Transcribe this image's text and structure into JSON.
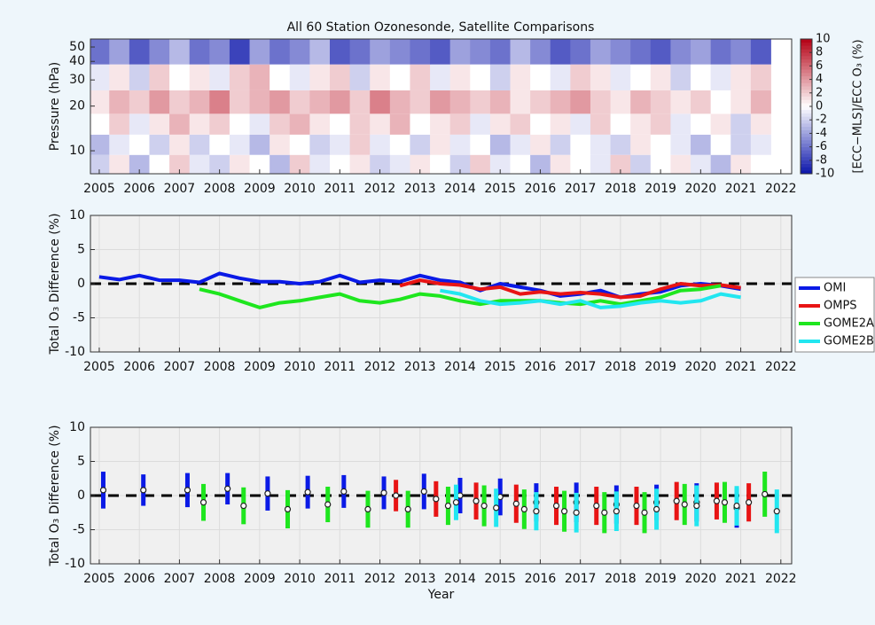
{
  "chart_data": [
    {
      "type": "heatmap",
      "title": "All 60 Station Ozonesonde, Satellite Comparisons",
      "ylabel": "Pressure (hPa)",
      "colorbar_label": "[ECC−MLS]/ECC O₃ (%)",
      "xlim": [
        2004.78,
        2022.27
      ],
      "xticks": [
        2005,
        2006,
        2007,
        2008,
        2009,
        2010,
        2011,
        2012,
        2013,
        2014,
        2015,
        2016,
        2017,
        2018,
        2019,
        2020,
        2021,
        2022
      ],
      "ylim": [
        7,
        56.6
      ],
      "ylog": true,
      "yticks": [
        10,
        20,
        30,
        40,
        50
      ],
      "clim": [
        -10,
        10
      ],
      "cticks": [
        -10,
        -8,
        -6,
        -4,
        -2,
        0,
        2,
        4,
        6,
        8,
        10
      ],
      "x": [
        2005,
        2005.5,
        2006,
        2006.5,
        2007,
        2007.5,
        2008,
        2008.5,
        2009,
        2009.5,
        2010,
        2010.5,
        2011,
        2011.5,
        2012,
        2012.5,
        2013,
        2013.5,
        2014,
        2014.5,
        2015,
        2015.5,
        2016,
        2016.5,
        2017,
        2017.5,
        2018,
        2018.5,
        2019,
        2019.5,
        2020,
        2020.5,
        2021,
        2021.5
      ],
      "y": [
        8,
        11,
        15,
        21,
        31,
        47
      ],
      "z": [
        [
          -2,
          1,
          -3,
          0,
          2,
          -1,
          -2,
          1,
          0,
          -3,
          2,
          -1,
          0,
          1,
          -2,
          -1,
          1,
          0,
          -2,
          2,
          -1,
          0,
          -3,
          1,
          0,
          -1,
          2,
          -2,
          0,
          1,
          -1,
          -3,
          1,
          0
        ],
        [
          -3,
          -1,
          0,
          -2,
          1,
          -2,
          0,
          -1,
          -3,
          1,
          0,
          -2,
          -1,
          2,
          -1,
          0,
          -2,
          1,
          -1,
          0,
          -3,
          -1,
          1,
          -2,
          0,
          -1,
          -2,
          1,
          0,
          -1,
          -3,
          0,
          -2,
          -1
        ],
        [
          0,
          2,
          -1,
          1,
          3,
          1,
          2,
          0,
          -1,
          2,
          3,
          1,
          0,
          2,
          1,
          3,
          0,
          1,
          2,
          -1,
          1,
          2,
          0,
          1,
          -1,
          2,
          0,
          1,
          2,
          -1,
          0,
          1,
          -2,
          1
        ],
        [
          1,
          3,
          2,
          4,
          2,
          3,
          5,
          2,
          3,
          4,
          2,
          3,
          4,
          2,
          5,
          3,
          2,
          4,
          3,
          2,
          3,
          1,
          2,
          3,
          4,
          2,
          1,
          3,
          2,
          1,
          2,
          0,
          1,
          3
        ],
        [
          -1,
          1,
          -2,
          2,
          0,
          1,
          -1,
          2,
          3,
          0,
          -1,
          1,
          2,
          -2,
          1,
          0,
          2,
          -1,
          1,
          0,
          -2,
          1,
          0,
          -1,
          2,
          1,
          -1,
          0,
          1,
          -2,
          0,
          -1,
          1,
          2
        ],
        [
          -6,
          -4,
          -7,
          -5,
          -3,
          -6,
          -5,
          -8,
          -4,
          -6,
          -5,
          -3,
          -7,
          -6,
          -4,
          -5,
          -6,
          -7,
          -4,
          -5,
          -6,
          -3,
          -5,
          -7,
          -6,
          -4,
          -5,
          -6,
          -7,
          -5,
          -4,
          -6,
          -5,
          -7
        ]
      ]
    },
    {
      "type": "line",
      "ylabel": "Total O₃ Difference (%)",
      "grid": true,
      "hline": 0,
      "xlim": [
        2004.78,
        2022.27
      ],
      "xticks": [
        2005,
        2006,
        2007,
        2008,
        2009,
        2010,
        2011,
        2012,
        2013,
        2014,
        2015,
        2016,
        2017,
        2018,
        2019,
        2020,
        2021,
        2022
      ],
      "ylim": [
        -10,
        10
      ],
      "yticks": [
        -10,
        -5,
        0,
        5,
        10
      ],
      "x": [
        2005,
        2005.5,
        2006,
        2006.5,
        2007,
        2007.5,
        2008,
        2008.5,
        2009,
        2009.5,
        2010,
        2010.5,
        2011,
        2011.5,
        2012,
        2012.5,
        2013,
        2013.5,
        2014,
        2014.5,
        2015,
        2015.5,
        2016,
        2016.5,
        2017,
        2017.5,
        2018,
        2018.5,
        2019,
        2019.5,
        2020,
        2020.5,
        2021
      ],
      "series": [
        {
          "name": "OMI",
          "color": "#0a1ae6",
          "values": [
            1.0,
            0.6,
            1.2,
            0.5,
            0.5,
            0.2,
            1.5,
            0.8,
            0.3,
            0.3,
            0,
            0.3,
            1.2,
            0.2,
            0.5,
            0.3,
            1.2,
            0.5,
            0.2,
            -1.0,
            0,
            -0.5,
            -1.0,
            -1.8,
            -1.5,
            -1.0,
            -2.0,
            -1.5,
            -1.2,
            -0.3,
            0,
            -0.3,
            -0.8
          ]
        },
        {
          "name": "OMPS",
          "color": "#e81414",
          "values": [
            null,
            null,
            null,
            null,
            null,
            null,
            null,
            null,
            null,
            null,
            null,
            null,
            null,
            null,
            null,
            -0.3,
            0.5,
            0,
            -0.2,
            -0.8,
            -0.5,
            -1.5,
            -1.2,
            -1.5,
            -1.3,
            -1.5,
            -2.0,
            -1.8,
            -0.8,
            0,
            -0.3,
            -0.2,
            -0.6
          ]
        },
        {
          "name": "GOME2A",
          "color": "#1ee61e",
          "values": [
            null,
            null,
            null,
            null,
            null,
            -0.8,
            -1.5,
            -2.5,
            -3.5,
            -2.8,
            -2.5,
            -2.0,
            -1.5,
            -2.5,
            -2.8,
            -2.3,
            -1.5,
            -1.8,
            -2.5,
            -3.0,
            -2.5,
            -2.5,
            -2.5,
            -2.8,
            -3.0,
            -2.5,
            -3.0,
            -2.5,
            -2.0,
            -1.0,
            -0.8,
            -0.3,
            null
          ]
        },
        {
          "name": "GOME2B",
          "color": "#22e6f0",
          "values": [
            null,
            null,
            null,
            null,
            null,
            null,
            null,
            null,
            null,
            null,
            null,
            null,
            null,
            null,
            null,
            null,
            null,
            -1.0,
            -1.5,
            -2.5,
            -3.0,
            -2.8,
            -2.5,
            -3.0,
            -2.5,
            -3.5,
            -3.3,
            -2.8,
            -2.5,
            -2.8,
            -2.5,
            -1.5,
            -2.0
          ]
        }
      ]
    },
    {
      "type": "errorbar",
      "ylabel": "Total O₃ Difference (%)",
      "xlabel": "Year",
      "grid": true,
      "hline": 0,
      "xlim": [
        2004.78,
        2022.27
      ],
      "xticks": [
        2005,
        2006,
        2007,
        2008,
        2009,
        2010,
        2011,
        2012,
        2013,
        2014,
        2015,
        2016,
        2017,
        2018,
        2019,
        2020,
        2021,
        2022
      ],
      "ylim": [
        -10,
        10
      ],
      "yticks": [
        -10,
        -5,
        0,
        5,
        10
      ],
      "series": [
        {
          "color": "#0a1ae6",
          "x": [
            2005.1,
            2006.1,
            2007.2,
            2008.2,
            2009.2,
            2010.2,
            2011.1,
            2012.1,
            2013.1,
            2014.0,
            2015.0,
            2015.9,
            2016.9,
            2017.9,
            2018.9,
            2019.9,
            2020.9
          ],
          "values": [
            0.8,
            0.8,
            0.8,
            1.0,
            0.3,
            0.5,
            0.6,
            0.4,
            0.6,
            0,
            -0.2,
            -1.0,
            -1.0,
            -1.3,
            -1.0,
            -1.0,
            -1.8
          ],
          "errors": [
            2.7,
            2.3,
            2.5,
            2.3,
            2.5,
            2.4,
            2.4,
            2.4,
            2.6,
            2.6,
            2.7,
            2.8,
            2.9,
            2.8,
            2.6,
            2.8,
            2.9
          ]
        },
        {
          "color": "#e81414",
          "x": [
            2012.4,
            2013.4,
            2014.4,
            2015.4,
            2016.4,
            2017.4,
            2018.4,
            2019.4,
            2020.4,
            2021.2
          ],
          "values": [
            0,
            -0.5,
            -0.8,
            -1.2,
            -1.5,
            -1.5,
            -1.5,
            -0.8,
            -0.8,
            -1.0
          ],
          "errors": [
            2.3,
            2.6,
            2.7,
            2.8,
            2.8,
            2.8,
            2.8,
            2.8,
            2.7,
            2.8
          ]
        },
        {
          "color": "#1ee61e",
          "x": [
            2007.6,
            2008.6,
            2009.7,
            2010.7,
            2011.7,
            2012.7,
            2013.7,
            2014.6,
            2015.6,
            2016.6,
            2017.6,
            2018.6,
            2019.6,
            2020.6,
            2021.6
          ],
          "values": [
            -1,
            -1.5,
            -2,
            -1.3,
            -2,
            -2,
            -1.5,
            -1.5,
            -2,
            -2.3,
            -2.5,
            -2.5,
            -1.3,
            -1.0,
            0.2
          ],
          "errors": [
            2.7,
            2.7,
            2.8,
            2.6,
            2.7,
            2.7,
            2.8,
            3,
            2.9,
            3,
            3,
            3,
            3,
            3,
            3.3
          ]
        },
        {
          "color": "#22e6f0",
          "x": [
            2013.9,
            2014.9,
            2015.9,
            2016.9,
            2017.9,
            2018.9,
            2019.9,
            2020.9,
            2021.9
          ],
          "values": [
            -1,
            -1.8,
            -2.3,
            -2.5,
            -2.3,
            -2,
            -1.5,
            -1.5,
            -2.3
          ],
          "errors": [
            2.6,
            2.8,
            2.8,
            2.9,
            2.9,
            3,
            3,
            2.9,
            3.2
          ]
        }
      ]
    }
  ]
}
